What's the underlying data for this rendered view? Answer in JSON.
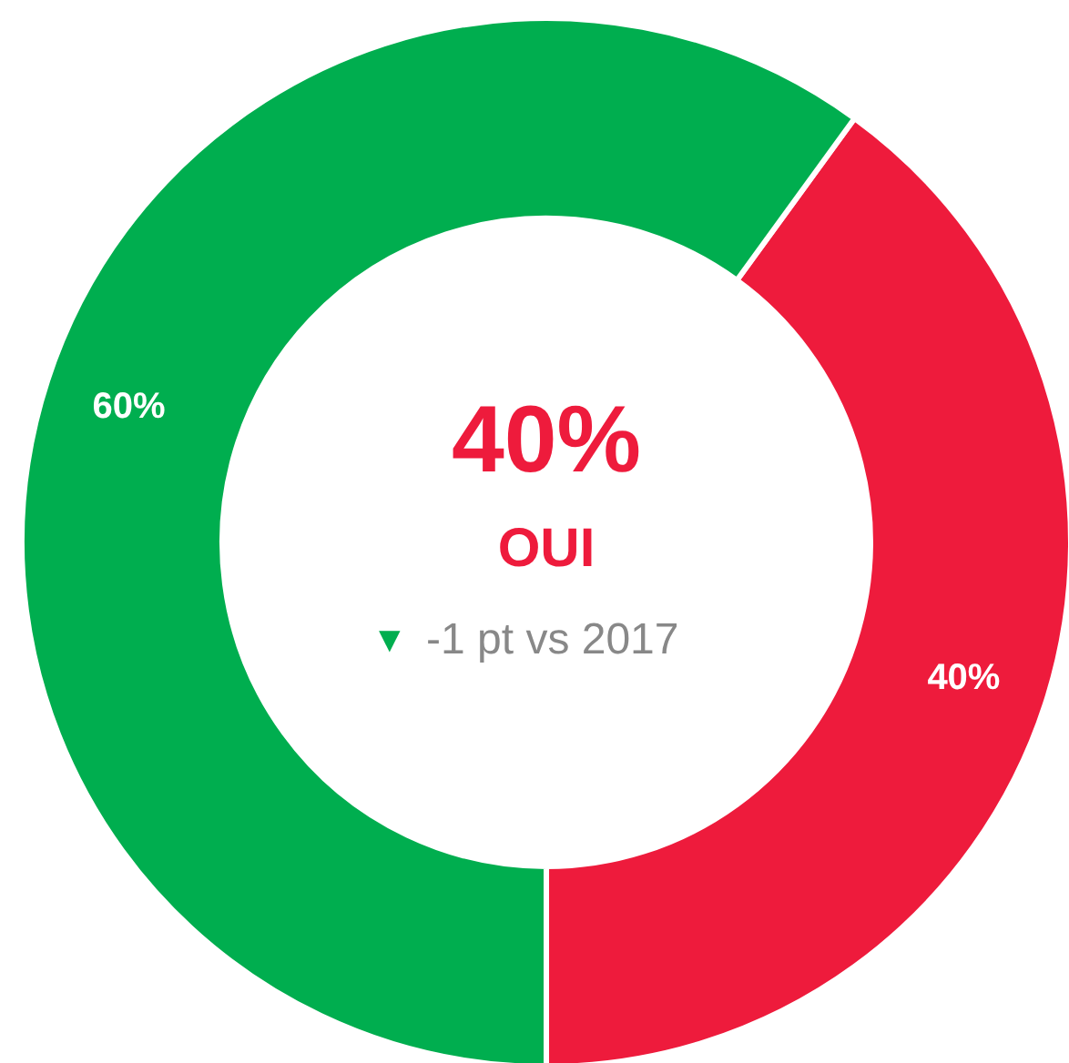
{
  "chart_data": {
    "type": "donut",
    "categories": [
      null,
      null
    ],
    "values": [
      40,
      60
    ],
    "colors": [
      "#ee1b3c",
      "#00ae4f"
    ],
    "value_labels": [
      "40%",
      "60%"
    ],
    "annotations": [
      "40%",
      "OUI",
      "▼ -1 pt vs 2017"
    ]
  }
}
